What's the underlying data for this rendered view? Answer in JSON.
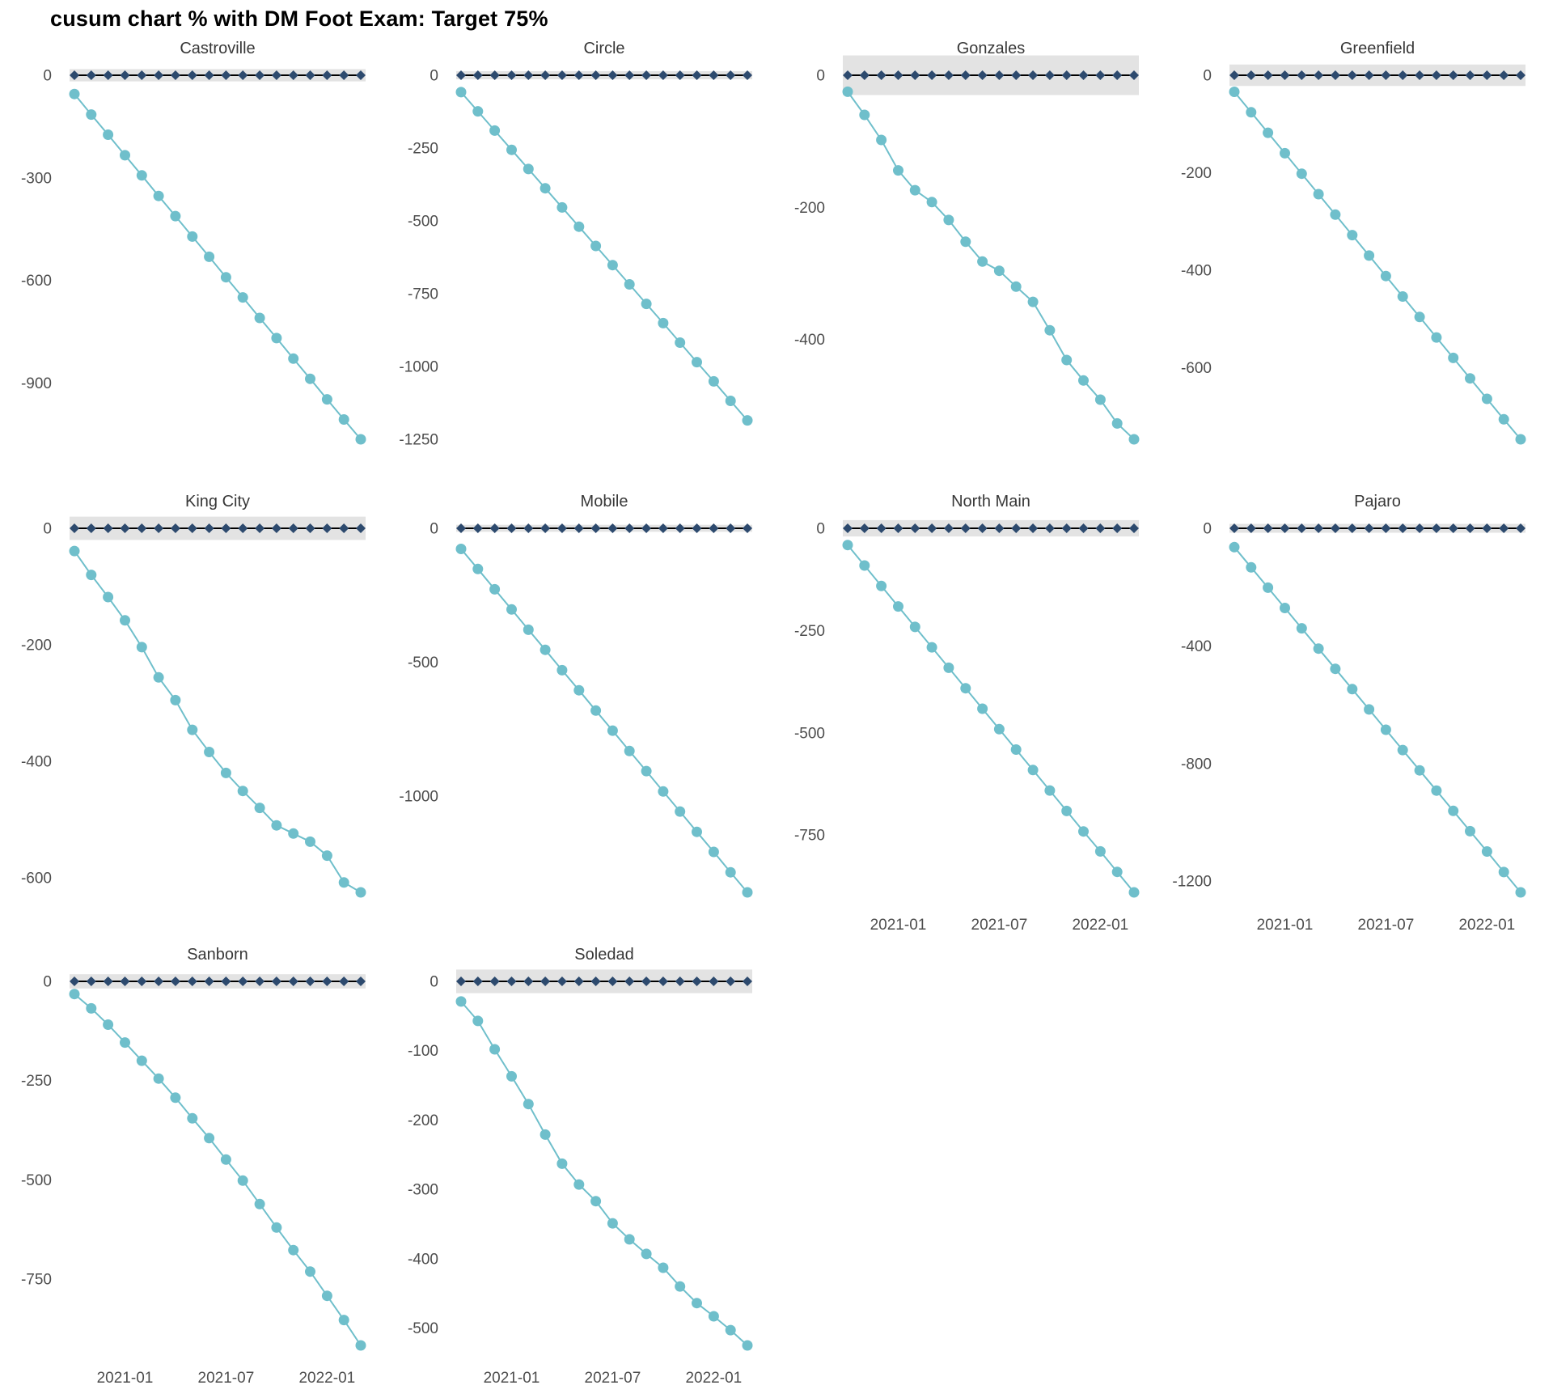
{
  "title": "cusum chart % with DM Foot Exam: Target 75%",
  "chart_data": {
    "type": "line",
    "title": "cusum chart % with DM Foot Exam: Target 75%",
    "x": [
      "2020-10",
      "2020-11",
      "2020-12",
      "2021-01",
      "2021-02",
      "2021-03",
      "2021-04",
      "2021-05",
      "2021-06",
      "2021-07",
      "2021-08",
      "2021-09",
      "2021-10",
      "2021-11",
      "2021-12",
      "2022-01",
      "2022-02",
      "2022-03"
    ],
    "x_axis_tick_labels": [
      "2021-01",
      "2021-07",
      "2022-01"
    ],
    "x_axis_tick_indices": [
      3,
      9,
      15
    ],
    "legend": "none",
    "grid": "off",
    "colors": {
      "cusum_line": "#6fbfcb",
      "reference_points": "#2d4a6e",
      "reference_line": "#000000",
      "control_band": "#e3e3e3",
      "background": "#ffffff"
    },
    "facets": [
      {
        "name": "Castroville",
        "show_x_axis": false,
        "y_ticks": [
          0,
          -300,
          -600,
          -900
        ],
        "band_halfwidth": 18,
        "reference_value": 0,
        "cusum": [
          -55,
          -115,
          -174,
          -234,
          -293,
          -353,
          -412,
          -472,
          -531,
          -591,
          -650,
          -710,
          -769,
          -829,
          -888,
          -948,
          -1007,
          -1065
        ]
      },
      {
        "name": "Circle",
        "show_x_axis": false,
        "y_ticks": [
          0,
          -250,
          -500,
          -750,
          -1000,
          -1250
        ],
        "band_halfwidth": 14,
        "reference_value": 0,
        "cusum": [
          -58,
          -124,
          -190,
          -256,
          -322,
          -388,
          -454,
          -520,
          -586,
          -652,
          -718,
          -785,
          -851,
          -918,
          -985,
          -1051,
          -1118,
          -1185
        ]
      },
      {
        "name": "Gonzales",
        "show_x_axis": false,
        "y_ticks": [
          0,
          -200,
          -400
        ],
        "band_halfwidth": 30,
        "reference_value": 0,
        "cusum": [
          -25,
          -60,
          -98,
          -144,
          -174,
          -192,
          -219,
          -252,
          -282,
          -296,
          -320,
          -343,
          -386,
          -431,
          -462,
          -491,
          -527,
          -551
        ]
      },
      {
        "name": "Greenfield",
        "show_x_axis": false,
        "y_ticks": [
          0,
          -200,
          -400,
          -600
        ],
        "band_halfwidth": 22,
        "reference_value": 0,
        "cusum": [
          -34,
          -76,
          -118,
          -160,
          -202,
          -244,
          -286,
          -328,
          -370,
          -412,
          -454,
          -496,
          -538,
          -580,
          -622,
          -664,
          -706,
          -747
        ]
      },
      {
        "name": "King City",
        "show_x_axis": false,
        "y_ticks": [
          0,
          -200,
          -400,
          -600
        ],
        "band_halfwidth": 20,
        "reference_value": 0,
        "cusum": [
          -39,
          -80,
          -118,
          -158,
          -204,
          -256,
          -295,
          -346,
          -384,
          -420,
          -451,
          -480,
          -510,
          -524,
          -538,
          -562,
          -608,
          -625
        ]
      },
      {
        "name": "Mobile",
        "show_x_axis": false,
        "y_ticks": [
          0,
          -500,
          -1000
        ],
        "band_halfwidth": 13,
        "reference_value": 0,
        "cusum": [
          -77,
          -152,
          -228,
          -303,
          -379,
          -454,
          -530,
          -605,
          -681,
          -756,
          -832,
          -907,
          -983,
          -1058,
          -1134,
          -1209,
          -1285,
          -1360
        ]
      },
      {
        "name": "North Main",
        "show_x_axis": true,
        "y_ticks": [
          0,
          -250,
          -500,
          -750
        ],
        "band_halfwidth": 20,
        "reference_value": 0,
        "cusum": [
          -41,
          -91,
          -141,
          -191,
          -241,
          -291,
          -341,
          -391,
          -441,
          -491,
          -541,
          -591,
          -641,
          -691,
          -741,
          -790,
          -840,
          -890
        ]
      },
      {
        "name": "Pajaro",
        "show_x_axis": true,
        "y_ticks": [
          0,
          -400,
          -800,
          -1200
        ],
        "band_halfwidth": 15,
        "reference_value": 0,
        "cusum": [
          -64,
          -133,
          -202,
          -271,
          -340,
          -409,
          -478,
          -547,
          -616,
          -685,
          -754,
          -823,
          -892,
          -961,
          -1030,
          -1099,
          -1169,
          -1238
        ]
      },
      {
        "name": "Sanborn",
        "show_x_axis": true,
        "y_ticks": [
          0,
          -250,
          -500,
          -750
        ],
        "band_halfwidth": 18,
        "reference_value": 0,
        "cusum": [
          -32,
          -68,
          -109,
          -154,
          -200,
          -245,
          -293,
          -345,
          -395,
          -449,
          -502,
          -561,
          -620,
          -677,
          -731,
          -792,
          -853,
          -917
        ]
      },
      {
        "name": "Soledad",
        "show_x_axis": true,
        "y_ticks": [
          0,
          -100,
          -200,
          -300,
          -400,
          -500
        ],
        "band_halfwidth": 17,
        "reference_value": 0,
        "cusum": [
          -29,
          -57,
          -98,
          -137,
          -177,
          -221,
          -263,
          -293,
          -317,
          -349,
          -372,
          -393,
          -413,
          -440,
          -464,
          -483,
          -503,
          -525
        ]
      }
    ]
  }
}
